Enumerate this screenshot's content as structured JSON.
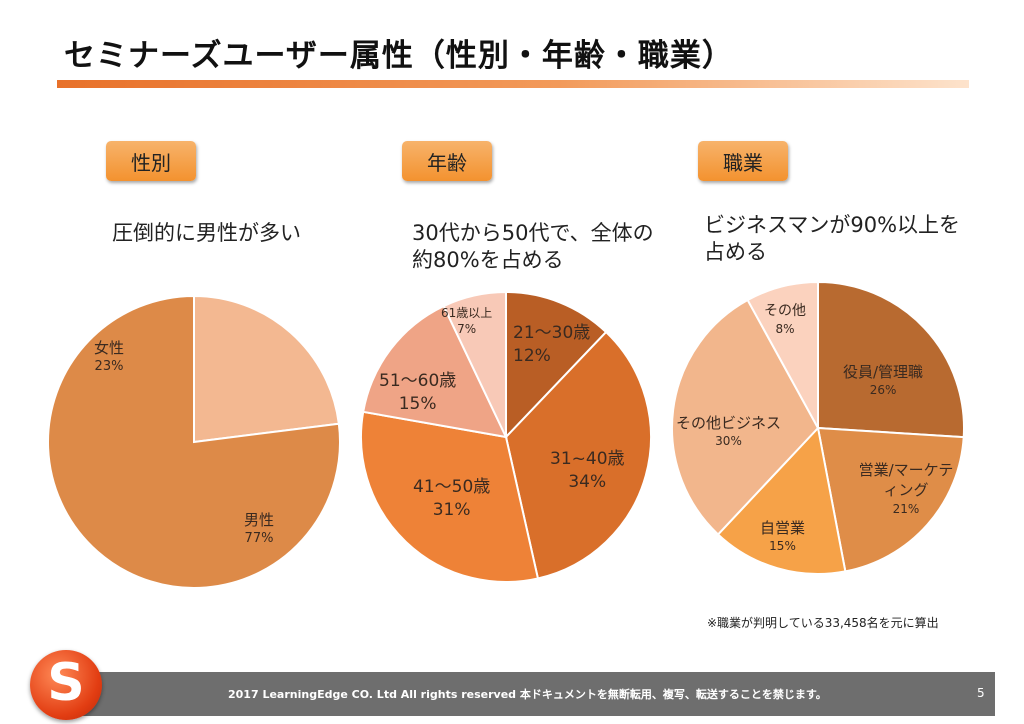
{
  "title": "セミナーズユーザー属性（性別・年齢・職業）",
  "sections": {
    "gender": {
      "tag": "性別",
      "desc": "圧倒的に男性が多い"
    },
    "age": {
      "tag": "年齢",
      "desc": "30代から50代で、全体の約80%を占める"
    },
    "occupation": {
      "tag": "職業",
      "desc": "ビジネスマンが90%以上を占める"
    }
  },
  "chart_data": [
    {
      "type": "pie",
      "slices": [
        {
          "label": "男性",
          "value": 77,
          "value_label": "77%",
          "color": "#dd8a48"
        },
        {
          "label": "女性",
          "value": 23,
          "value_label": "23%",
          "color": "#f3b891"
        }
      ]
    },
    {
      "type": "pie",
      "slices": [
        {
          "label": "21～30歳",
          "value": 12,
          "value_label": "12%",
          "color": "#b95e25"
        },
        {
          "label": "31~40歳",
          "value": 34,
          "value_label": "34%",
          "color": "#d96f2a"
        },
        {
          "label": "41～50歳",
          "value": 31,
          "value_label": "31%",
          "color": "#ee8237"
        },
        {
          "label": "51～60歳",
          "value": 15,
          "value_label": "15%",
          "color": "#efa486"
        },
        {
          "label": "61歳以上",
          "value": 7,
          "value_label": "7%",
          "color": "#f8c9b7"
        }
      ]
    },
    {
      "type": "pie",
      "slices": [
        {
          "label": "役員/管理職",
          "value": 26,
          "value_label": "26%",
          "color": "#b86a30"
        },
        {
          "label": "営業/マーケティング",
          "value": 21,
          "value_label": "21%",
          "color": "#df8d48"
        },
        {
          "label": "自営業",
          "value": 15,
          "value_label": "15%",
          "color": "#f6a248"
        },
        {
          "label": "その他ビジネス",
          "value": 30,
          "value_label": "30%",
          "color": "#f2b68c"
        },
        {
          "label": "その他",
          "value": 8,
          "value_label": "8%",
          "color": "#fbd2be"
        }
      ]
    }
  ],
  "note": "※職業が判明している33,458名を元に算出",
  "footer": "2017 LearningEdge CO. Ltd All rights reserved 本ドキュメントを無断転用、複写、転送することを禁じます。",
  "page_number": "5",
  "logo": {
    "letter": "S",
    "color": "#e23d12"
  }
}
